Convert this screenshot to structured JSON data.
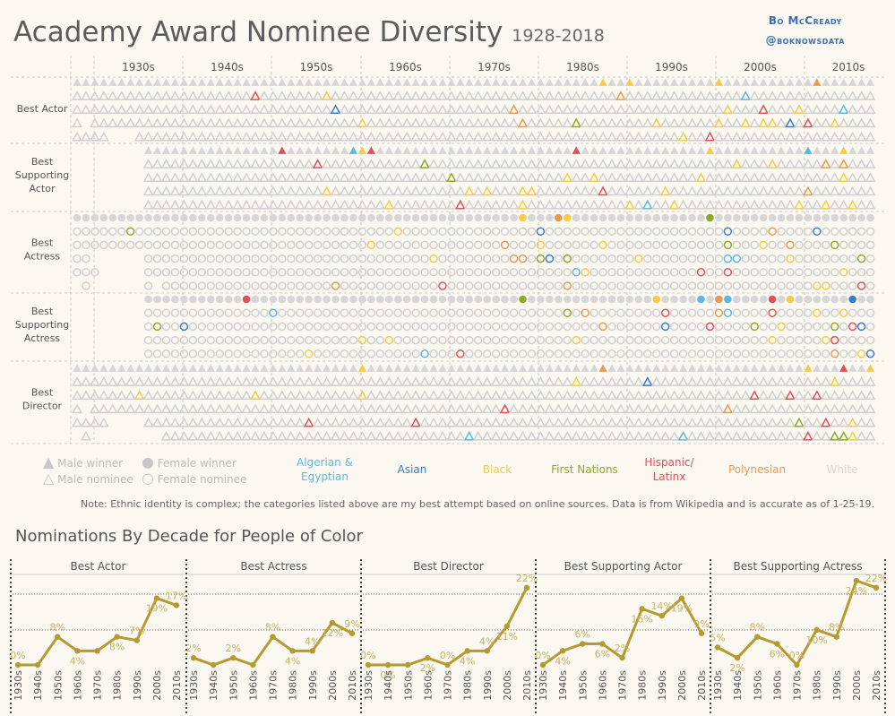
{
  "header": {
    "title": "Academy Award Nominee Diversity",
    "year_range": "1928-2018",
    "author_name": "Bo McCready",
    "author_handle": "@boknowsdata"
  },
  "decades": [
    "1930s",
    "1940s",
    "1950s",
    "1960s",
    "1970s",
    "1980s",
    "1990s",
    "2000s",
    "2010s"
  ],
  "categories": [
    {
      "name": "Best Actor",
      "shape": "triangle",
      "rows": 5
    },
    {
      "name": "Best Supporting Actor",
      "shape": "triangle",
      "rows": 5
    },
    {
      "name": "Best Actress",
      "shape": "circle",
      "rows": 6
    },
    {
      "name": "Best Supporting Actress",
      "shape": "circle",
      "rows": 5
    },
    {
      "name": "Best Director",
      "shape": "triangle",
      "rows": 6
    }
  ],
  "colors": {
    "algerian_egyptian": "#5cb8e0",
    "asian": "#3b7cc4",
    "black": "#f2cc4c",
    "first_nations": "#8aab2c",
    "hispanic_latinx": "#e0505a",
    "polynesian": "#e89a54",
    "white": "#d6d6d6",
    "line": "#b59a30"
  },
  "legend": {
    "male_winner": "Male winner",
    "male_nominee": "Male nominee",
    "female_winner": "Female winner",
    "female_nominee": "Female nominee",
    "groups": [
      {
        "label": "Algerian & Egyptian",
        "color": "#5cb8e0"
      },
      {
        "label": "Asian",
        "color": "#3b7cc4"
      },
      {
        "label": "Black",
        "color": "#f2cc4c"
      },
      {
        "label": "First Nations",
        "color": "#8aab2c"
      },
      {
        "label": "Hispanic/ Latinx",
        "color": "#e0505a"
      },
      {
        "label": "Polynesian",
        "color": "#e89a54"
      },
      {
        "label": "White",
        "color": "#d6d6d6"
      }
    ]
  },
  "note": "Note: Ethnic identity is complex; the categories listed above are my best attempt based on online sources. Data is from Wikipedia and is accurate as of 1-25-19.",
  "subtitle": "Nominations By Decade for People of Color",
  "chart_data": [
    {
      "type": "line",
      "title": "Best Actor",
      "x": [
        "1930s",
        "1940s",
        "1950s",
        "1960s",
        "1970s",
        "1980s",
        "1990s",
        "2000s",
        "2010s"
      ],
      "values": [
        0,
        0,
        8,
        4,
        4,
        8,
        7,
        19,
        17
      ],
      "labels": [
        "0%",
        "",
        "8%",
        "4%",
        "",
        "8%",
        "7%",
        "19%",
        "17%"
      ],
      "ylim": [
        0,
        24
      ]
    },
    {
      "type": "line",
      "title": "Best Actress",
      "x": [
        "1930s",
        "1940s",
        "1950s",
        "1960s",
        "1970s",
        "1980s",
        "1990s",
        "2000s",
        "2010s"
      ],
      "values": [
        2,
        0,
        2,
        0,
        8,
        4,
        4,
        12,
        9
      ],
      "labels": [
        "2%",
        "",
        "2%",
        "",
        "8%",
        "4%",
        "4%",
        "12%",
        "9%"
      ],
      "ylim": [
        0,
        24
      ]
    },
    {
      "type": "line",
      "title": "Best Director",
      "x": [
        "1930s",
        "1940s",
        "1950s",
        "1960s",
        "1970s",
        "1980s",
        "1990s",
        "2000s",
        "2010s"
      ],
      "values": [
        0,
        0,
        0,
        2,
        0,
        4,
        4,
        11,
        22
      ],
      "labels": [
        "0%",
        "0%",
        "",
        "2%",
        "0%",
        "4%",
        "4%",
        "11%",
        "22%"
      ],
      "ylim": [
        0,
        24
      ]
    },
    {
      "type": "line",
      "title": "Best Supporting Actor",
      "x": [
        "1930s",
        "1940s",
        "1950s",
        "1960s",
        "1970s",
        "1980s",
        "1990s",
        "2000s",
        "2010s"
      ],
      "values": [
        0,
        4,
        6,
        6,
        2,
        16,
        14,
        19,
        9
      ],
      "labels": [
        "0%",
        "4%",
        "6%",
        "6%",
        "2%",
        "16%",
        "14%",
        "19%",
        "9%"
      ],
      "ylim": [
        0,
        24
      ]
    },
    {
      "type": "line",
      "title": "Best Supporting Actress",
      "x": [
        "1930s",
        "1940s",
        "1950s",
        "1960s",
        "1970s",
        "1980s",
        "1990s",
        "2000s",
        "2010s"
      ],
      "values": [
        5,
        2,
        8,
        6,
        0,
        10,
        8,
        24,
        22
      ],
      "labels": [
        "5%",
        "2%",
        "8%",
        "6%",
        "0%",
        "10%",
        "8%",
        "24%",
        "22%"
      ],
      "ylim": [
        0,
        24
      ]
    }
  ]
}
